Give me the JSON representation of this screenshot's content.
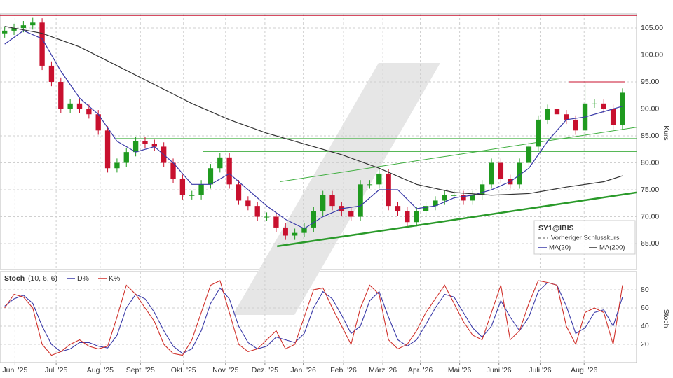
{
  "chart_data": [
    {
      "type": "candlestick",
      "symbol": "SY1@IBIS",
      "y_label": "Kurs",
      "reference_line": {
        "name": "Vorheriger Schlusskurs"
      },
      "xlim": [
        -0.5,
        67.5
      ],
      "ylim": [
        60.2,
        107.6
      ],
      "grid": true,
      "up_color": "#1f9a1f",
      "down_color": "#c8102e",
      "yticks": [
        {
          "value": 65,
          "label": "65.00"
        },
        {
          "value": 70,
          "label": "70.00"
        },
        {
          "value": 75,
          "label": "75.00"
        },
        {
          "value": 80,
          "label": "80.00"
        },
        {
          "value": 85,
          "label": "85.00"
        },
        {
          "value": 90,
          "label": "90.00"
        },
        {
          "value": 95,
          "label": "95.00"
        },
        {
          "value": 100,
          "label": "100.00"
        },
        {
          "value": 105,
          "label": "105.00"
        }
      ],
      "x": [
        0,
        1,
        2,
        3,
        4,
        5,
        6,
        7,
        8,
        9,
        10,
        11,
        12,
        13,
        14,
        15,
        16,
        17,
        18,
        19,
        20,
        21,
        22,
        23,
        24,
        25,
        26,
        27,
        28,
        29,
        30,
        31,
        32,
        33,
        34,
        35,
        36,
        37,
        38,
        39,
        40,
        41,
        42,
        43,
        44,
        45,
        46,
        47,
        48,
        49,
        50,
        51,
        52,
        53,
        54,
        55,
        56,
        57,
        58,
        59,
        60,
        61,
        62,
        63,
        64,
        65,
        66
      ],
      "open": [
        104,
        104.5,
        105,
        105.5,
        106,
        98,
        95,
        90,
        91,
        90,
        89,
        86,
        79,
        80,
        82,
        84,
        83.5,
        83,
        80,
        77,
        74,
        74,
        76,
        79,
        81,
        76,
        73,
        72,
        70,
        70,
        68,
        66.5,
        67,
        68,
        71,
        74,
        72,
        71,
        70,
        76,
        76,
        78,
        72,
        71,
        69,
        71,
        72,
        73,
        74,
        74,
        73,
        74,
        76,
        80,
        77,
        76,
        80,
        83,
        88,
        90,
        89,
        88,
        86,
        91,
        91,
        90,
        87
      ],
      "high": [
        105.3,
        105.8,
        106.3,
        107,
        106.8,
        98.8,
        95.8,
        91.8,
        91.8,
        90.8,
        89.8,
        86.8,
        80.8,
        82.8,
        84.8,
        84.8,
        84.3,
        83.8,
        80.8,
        77.8,
        74.8,
        76.8,
        79.8,
        81.8,
        81.8,
        76.8,
        73.8,
        72.8,
        70.8,
        70.8,
        68.8,
        67.8,
        68.8,
        71.8,
        74.8,
        74.8,
        72.8,
        71.8,
        76.8,
        76.8,
        78.8,
        78.8,
        72.8,
        71.8,
        71.8,
        72.8,
        73.8,
        74.8,
        74.8,
        74.8,
        74.8,
        76.8,
        80.8,
        80.8,
        77.8,
        80.8,
        83.8,
        88.8,
        90.8,
        90.8,
        89.8,
        88.8,
        95,
        91.8,
        91.8,
        90.8,
        93.8
      ],
      "low": [
        103.2,
        103.7,
        104.2,
        104.7,
        97.2,
        94.2,
        89.2,
        89.2,
        89.2,
        88.2,
        85.2,
        78.2,
        78.2,
        79.2,
        81.2,
        82.7,
        82.2,
        79.2,
        76.2,
        73.2,
        73.2,
        73.2,
        75.2,
        78.2,
        75.2,
        72.2,
        71.2,
        69.2,
        69.2,
        67.2,
        65.7,
        65.7,
        66.2,
        67.2,
        70.2,
        71.2,
        70.2,
        69.2,
        69.2,
        75.2,
        75.2,
        71.2,
        70.2,
        68.2,
        68.2,
        70.2,
        71.2,
        72.2,
        73.2,
        72.2,
        72.2,
        73.2,
        75.2,
        76.2,
        75.2,
        75.2,
        79.2,
        82.2,
        87.2,
        88.2,
        87.2,
        85.2,
        85.2,
        90.2,
        89.2,
        86.2,
        86.2
      ],
      "close": [
        104.5,
        105,
        105.5,
        106,
        98,
        95,
        90,
        91,
        90,
        89,
        86,
        79,
        80,
        82,
        84,
        83.5,
        83,
        80,
        77,
        74,
        74,
        76,
        79,
        81,
        76,
        73,
        72,
        70,
        70,
        68,
        66.5,
        67,
        68,
        71,
        74,
        72,
        71,
        70,
        76,
        76,
        78,
        72,
        71,
        69,
        71,
        72,
        73,
        74,
        74,
        73,
        74,
        76,
        80,
        77,
        76,
        80,
        83,
        88,
        90,
        89,
        88,
        86,
        91,
        91,
        90,
        87,
        93
      ],
      "series": [
        {
          "name": "MA(20)",
          "color": "#3a3aa8",
          "x": [
            0,
            2,
            4,
            6,
            8,
            10,
            12,
            14,
            16,
            18,
            20,
            22,
            24,
            26,
            28,
            30,
            32,
            34,
            36,
            38,
            40,
            42,
            44,
            46,
            48,
            50,
            52,
            54,
            56,
            58,
            60,
            62,
            64,
            66
          ],
          "values": [
            102,
            104.5,
            103,
            97,
            92,
            89,
            84,
            82,
            83,
            80,
            76,
            76,
            78,
            75,
            72,
            69.5,
            67.8,
            70,
            71.5,
            72,
            75,
            75,
            71.5,
            72,
            73.5,
            74,
            75,
            76.5,
            79,
            84,
            88,
            88.5,
            89.5,
            90.5
          ]
        },
        {
          "name": "MA(200)",
          "color": "#333333",
          "x": [
            0,
            4,
            8,
            12,
            16,
            20,
            24,
            28,
            32,
            36,
            40,
            44,
            48,
            52,
            56,
            60,
            64,
            66
          ],
          "values": [
            105.3,
            104,
            101.5,
            98,
            94.5,
            91,
            88,
            85.5,
            83.5,
            81.5,
            79,
            76,
            74.5,
            74,
            74.3,
            75.5,
            76.5,
            77.6
          ]
        }
      ],
      "annotation_lines": [
        {
          "color": "#c8102e",
          "width": 1,
          "x": [
            -0.5,
            67.5
          ],
          "values": [
            107.3,
            107.3
          ]
        },
        {
          "color": "#c8102e",
          "width": 1,
          "x": [
            60.3,
            66.3
          ],
          "values": [
            95,
            95
          ]
        },
        {
          "color": "#3fae3f",
          "width": 1,
          "x": [
            11.9,
            67.5
          ],
          "values": [
            84.5,
            84.5
          ]
        },
        {
          "color": "#3fae3f",
          "width": 1,
          "x": [
            21.2,
            67.5
          ],
          "values": [
            82.1,
            82.1
          ]
        },
        {
          "color": "#3fae3f",
          "width": 1,
          "x": [
            29.4,
            67.5
          ],
          "values": [
            76.5,
            86.6
          ]
        },
        {
          "color": "#2a9a2a",
          "width": 2.5,
          "x": [
            29.1,
            67.5
          ],
          "values": [
            64.5,
            74.5
          ]
        }
      ]
    },
    {
      "type": "line",
      "title": "Stoch",
      "params": "(10, 6, 6)",
      "y_label": "Stoch",
      "xlim": [
        -0.5,
        67.5
      ],
      "ylim": [
        0,
        100
      ],
      "yticks": [
        20,
        40,
        60,
        80
      ],
      "grid": true,
      "xticks": [
        {
          "value": 1.1,
          "label": "Juni '25"
        },
        {
          "value": 5.5,
          "label": "Juli '25"
        },
        {
          "value": 10.2,
          "label": "Aug. '25"
        },
        {
          "value": 14.5,
          "label": "Sept. '25"
        },
        {
          "value": 19.1,
          "label": "Okt. '25"
        },
        {
          "value": 23.6,
          "label": "Nov. '25"
        },
        {
          "value": 27.8,
          "label": "Dez. '25"
        },
        {
          "value": 31.9,
          "label": "Jan. '26"
        },
        {
          "value": 36.2,
          "label": "Feb. '26"
        },
        {
          "value": 40.4,
          "label": "März '26"
        },
        {
          "value": 44.4,
          "label": "Apr. '26"
        },
        {
          "value": 48.6,
          "label": "Mai '26"
        },
        {
          "value": 52.8,
          "label": "Juni '26"
        },
        {
          "value": 57.2,
          "label": "Juli '26"
        },
        {
          "value": 61.9,
          "label": "Aug. '26"
        }
      ],
      "x": [
        0,
        1,
        2,
        3,
        4,
        5,
        6,
        7,
        8,
        9,
        10,
        11,
        12,
        13,
        14,
        15,
        16,
        17,
        18,
        19,
        20,
        21,
        22,
        23,
        24,
        25,
        26,
        27,
        28,
        29,
        30,
        31,
        32,
        33,
        34,
        35,
        36,
        37,
        38,
        39,
        40,
        41,
        42,
        43,
        44,
        45,
        46,
        47,
        48,
        49,
        50,
        51,
        52,
        53,
        54,
        55,
        56,
        57,
        58,
        59,
        60,
        61,
        62,
        63,
        64,
        65,
        66
      ],
      "series": [
        {
          "name": "D%",
          "color": "#3a3aa8",
          "values": [
            62,
            70,
            74,
            65,
            40,
            20,
            12,
            15,
            22,
            22,
            18,
            16,
            30,
            60,
            75,
            70,
            55,
            35,
            18,
            10,
            15,
            35,
            65,
            82,
            70,
            40,
            22,
            15,
            18,
            28,
            25,
            22,
            32,
            60,
            78,
            70,
            52,
            32,
            40,
            68,
            78,
            50,
            25,
            18,
            25,
            42,
            60,
            75,
            72,
            55,
            38,
            28,
            40,
            68,
            50,
            35,
            50,
            78,
            88,
            85,
            62,
            32,
            38,
            55,
            58,
            40,
            72
          ]
        },
        {
          "name": "K%",
          "color": "#d0302a",
          "values": [
            60,
            75,
            72,
            60,
            20,
            8,
            12,
            20,
            25,
            18,
            15,
            18,
            50,
            85,
            75,
            60,
            45,
            20,
            10,
            8,
            25,
            55,
            85,
            90,
            55,
            20,
            12,
            15,
            25,
            35,
            15,
            20,
            50,
            80,
            82,
            60,
            40,
            20,
            60,
            85,
            75,
            25,
            15,
            20,
            35,
            55,
            70,
            85,
            65,
            45,
            30,
            25,
            55,
            85,
            25,
            35,
            65,
            90,
            88,
            85,
            40,
            20,
            55,
            60,
            55,
            20,
            85
          ]
        }
      ]
    }
  ]
}
